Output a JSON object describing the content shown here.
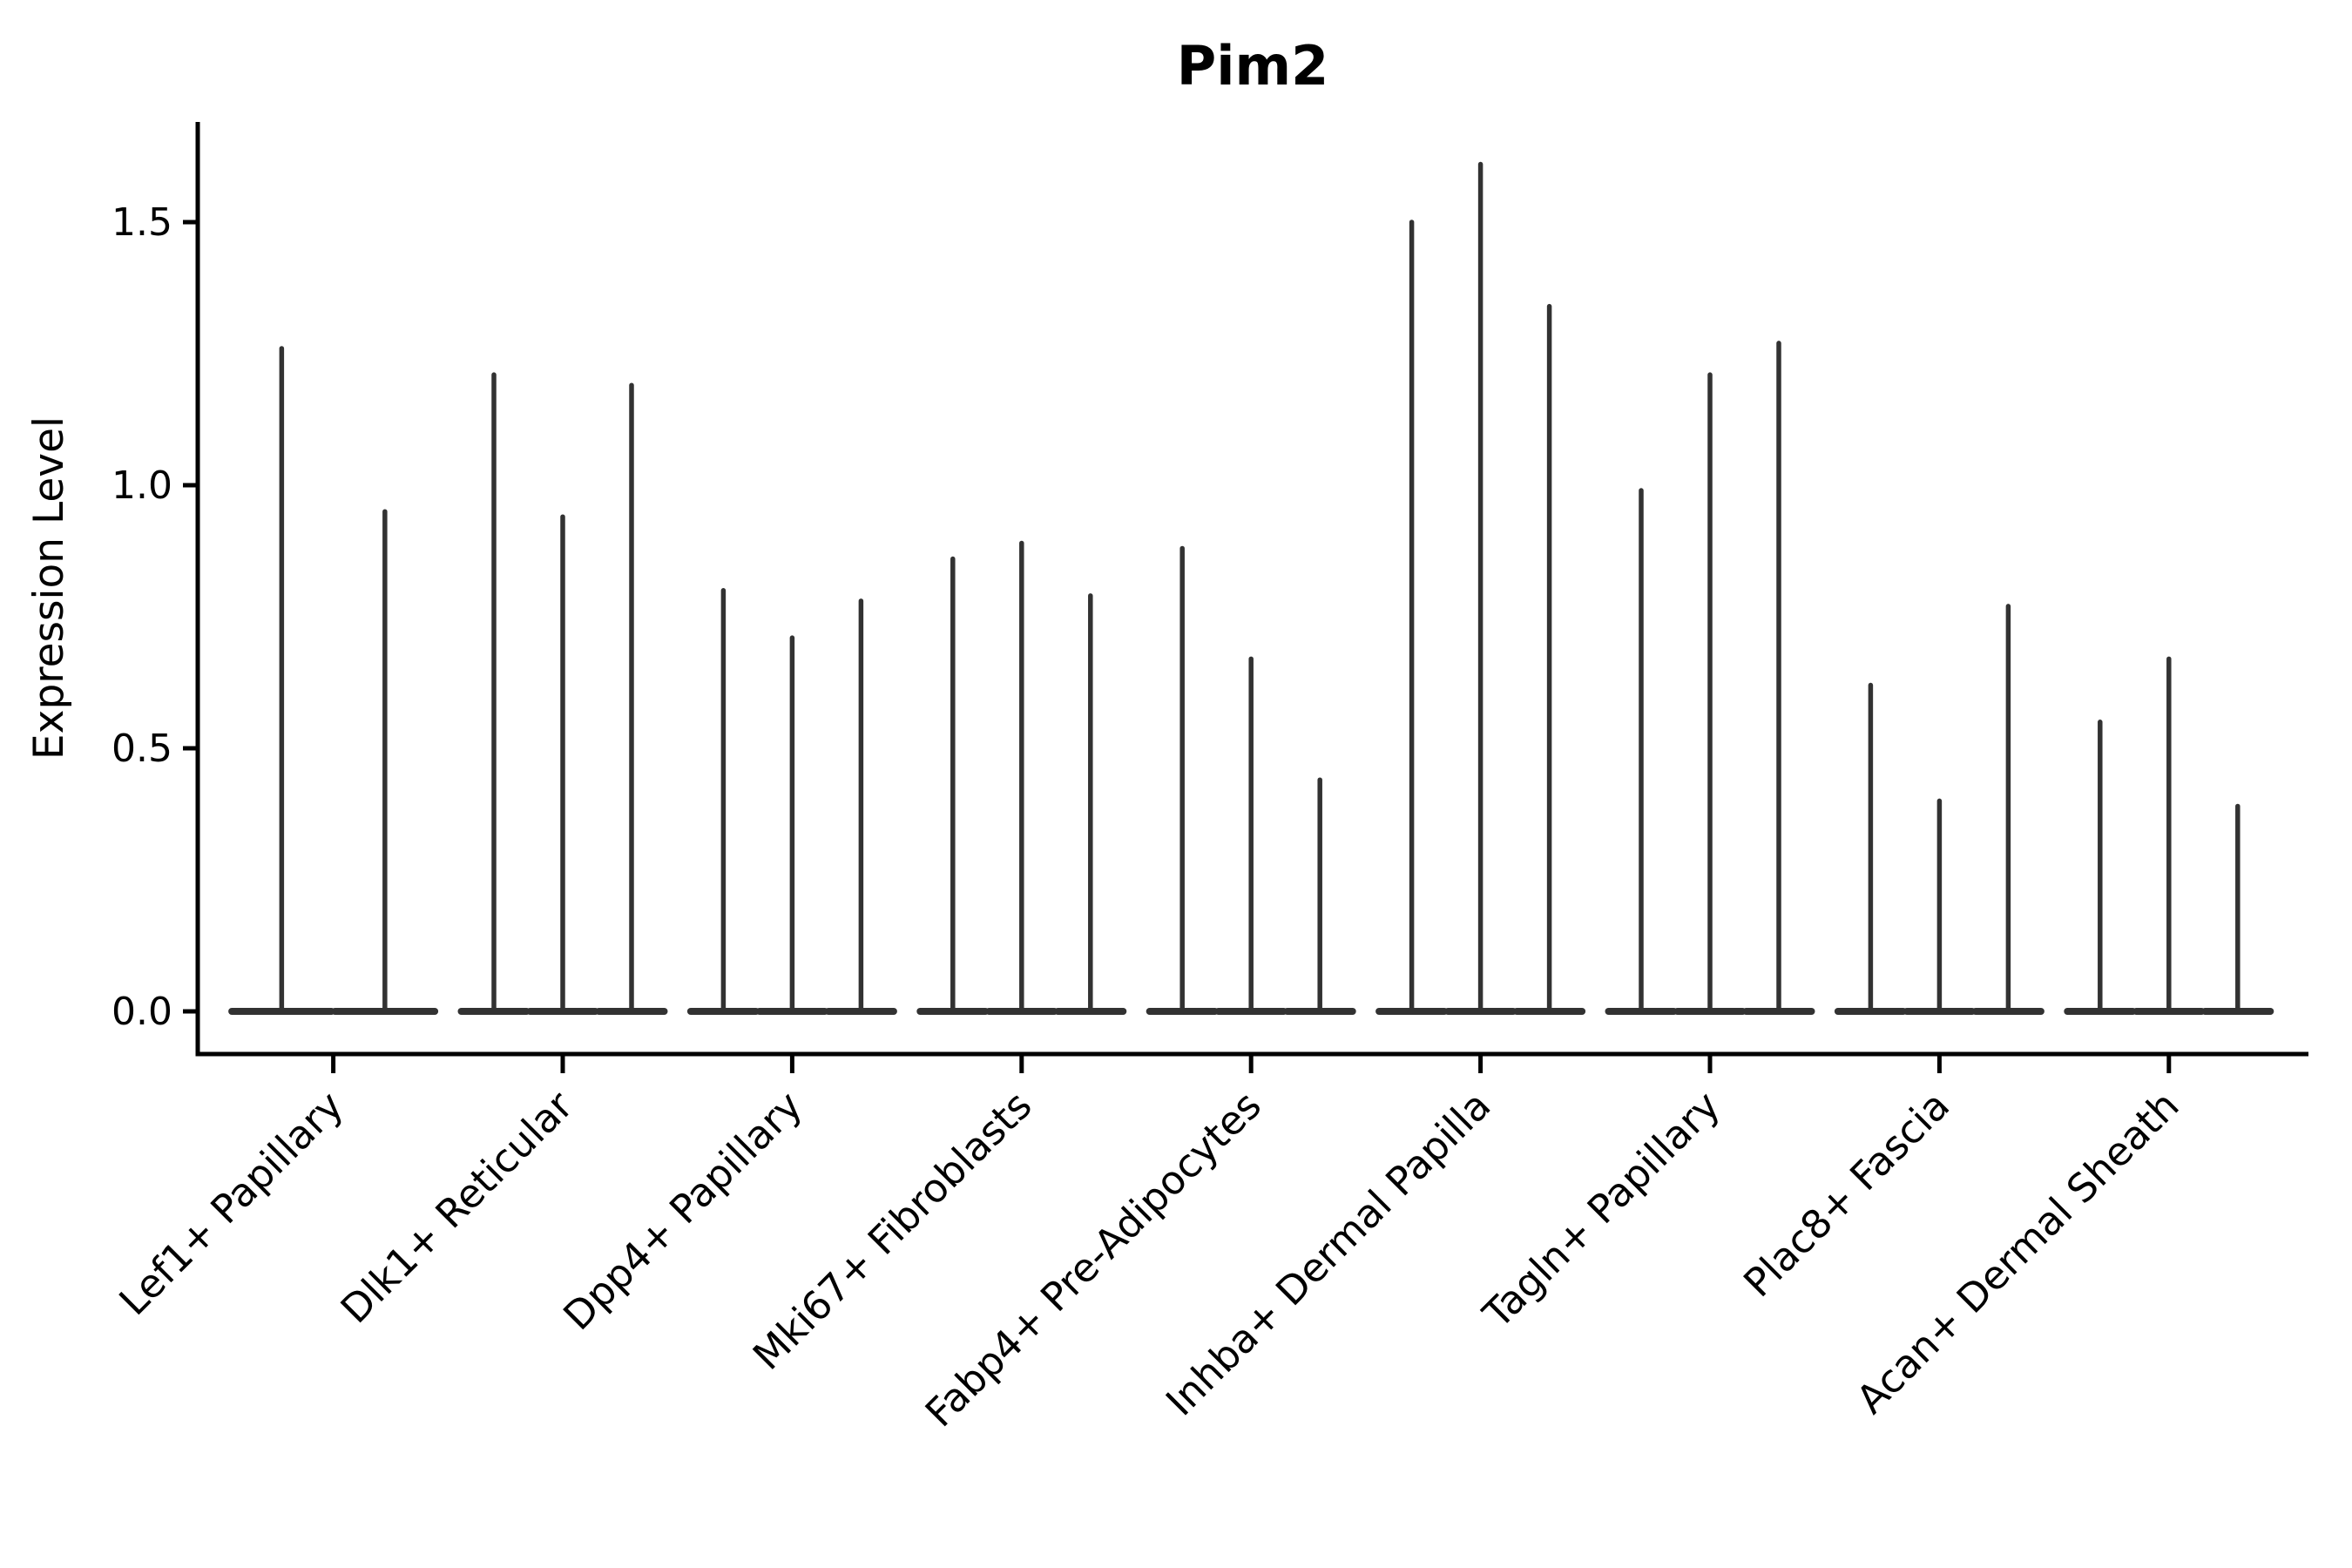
{
  "page": {
    "background": "#ffffff"
  },
  "chart_data": {
    "type": "violin",
    "title": "Pim2",
    "ylabel": "Expression Level",
    "xlabel": "",
    "grid": false,
    "legend": null,
    "ytick_values": [
      0.0,
      0.5,
      1.0,
      1.5
    ],
    "ytick_labels": [
      "0.0",
      "0.5",
      "1.0",
      "1.5"
    ],
    "ylim": [
      -0.08,
      1.69
    ],
    "colors": {
      "violin_stroke": "#323232",
      "axis": "#000000",
      "text": "#000000",
      "background": "#ffffff"
    },
    "groups": [
      {
        "label": "Lef1+ Papillary",
        "violin_maxima": [
          1.26,
          0.95
        ]
      },
      {
        "label": "Dlk1+ Reticular",
        "violin_maxima": [
          1.21,
          0.94,
          1.19
        ]
      },
      {
        "label": "Dpp4+ Papillary",
        "violin_maxima": [
          0.8,
          0.71,
          0.78
        ]
      },
      {
        "label": "Mki67+ Fibroblasts",
        "violin_maxima": [
          0.86,
          0.89,
          0.79
        ]
      },
      {
        "label": "Fabp4+ Pre-Adipocytes",
        "violin_maxima": [
          0.88,
          0.67,
          0.44
        ]
      },
      {
        "label": "Inhba+ Dermal Papilla",
        "violin_maxima": [
          1.5,
          1.61,
          1.34
        ]
      },
      {
        "label": "Tagln+ Papillary",
        "violin_maxima": [
          0.99,
          1.21,
          1.27
        ]
      },
      {
        "label": "Plac8+ Fascia",
        "violin_maxima": [
          0.62,
          0.4,
          0.77
        ]
      },
      {
        "label": "Acan+ Dermal Sheath",
        "violin_maxima": [
          0.55,
          0.67,
          0.39
        ]
      }
    ]
  }
}
